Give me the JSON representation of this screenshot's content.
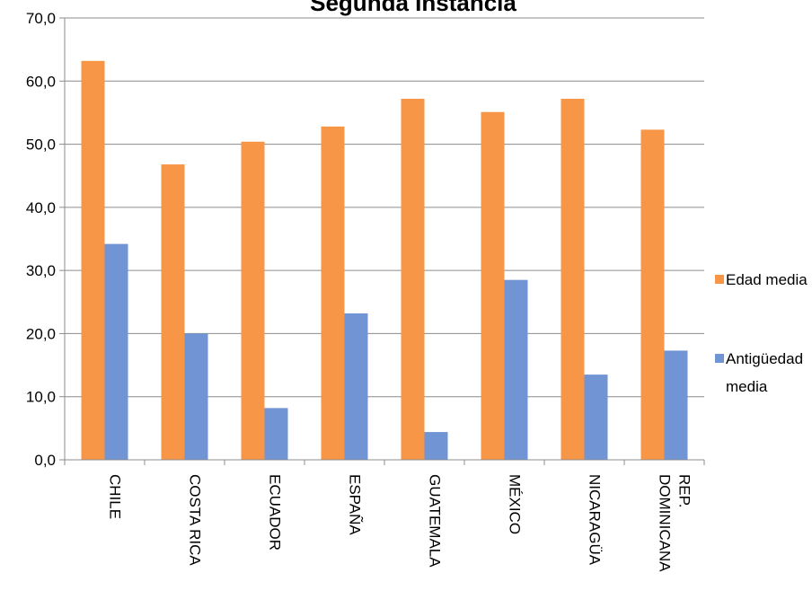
{
  "chart_data": {
    "type": "bar",
    "title": "Segunda Instancia",
    "xlabel": "",
    "ylabel": "",
    "categories": [
      "CHILE",
      "COSTA RICA",
      "ECUADOR",
      "ESPAÑA",
      "GUATEMALA",
      "MÉXICO",
      "NICARAGÜA",
      "REP. DOMINICANA"
    ],
    "category_lines": [
      [
        "CHILE"
      ],
      [
        "COSTA RICA"
      ],
      [
        "ECUADOR"
      ],
      [
        "ESPAÑA"
      ],
      [
        "GUATEMALA"
      ],
      [
        "MÉXICO"
      ],
      [
        "NICARAGÜA"
      ],
      [
        "REP.",
        "DOMINICANA"
      ]
    ],
    "series": [
      {
        "name": "Edad media",
        "color": "#f79646",
        "values": [
          63.2,
          46.8,
          50.4,
          52.8,
          57.2,
          55.1,
          57.2,
          52.3
        ]
      },
      {
        "name": "Antigüedad media",
        "color": "#7094d4",
        "values": [
          34.2,
          20.0,
          8.2,
          23.2,
          4.4,
          28.5,
          13.5,
          17.3
        ]
      }
    ],
    "legend_lines": [
      [
        "Edad media"
      ],
      [
        "Antigüedad",
        "media"
      ]
    ],
    "ylim": [
      0,
      70
    ],
    "yticks": [
      "0,0",
      "10,0",
      "20,0",
      "30,0",
      "40,0",
      "50,0",
      "60,0",
      "70,0"
    ],
    "grid": true,
    "legend_position": "right"
  }
}
